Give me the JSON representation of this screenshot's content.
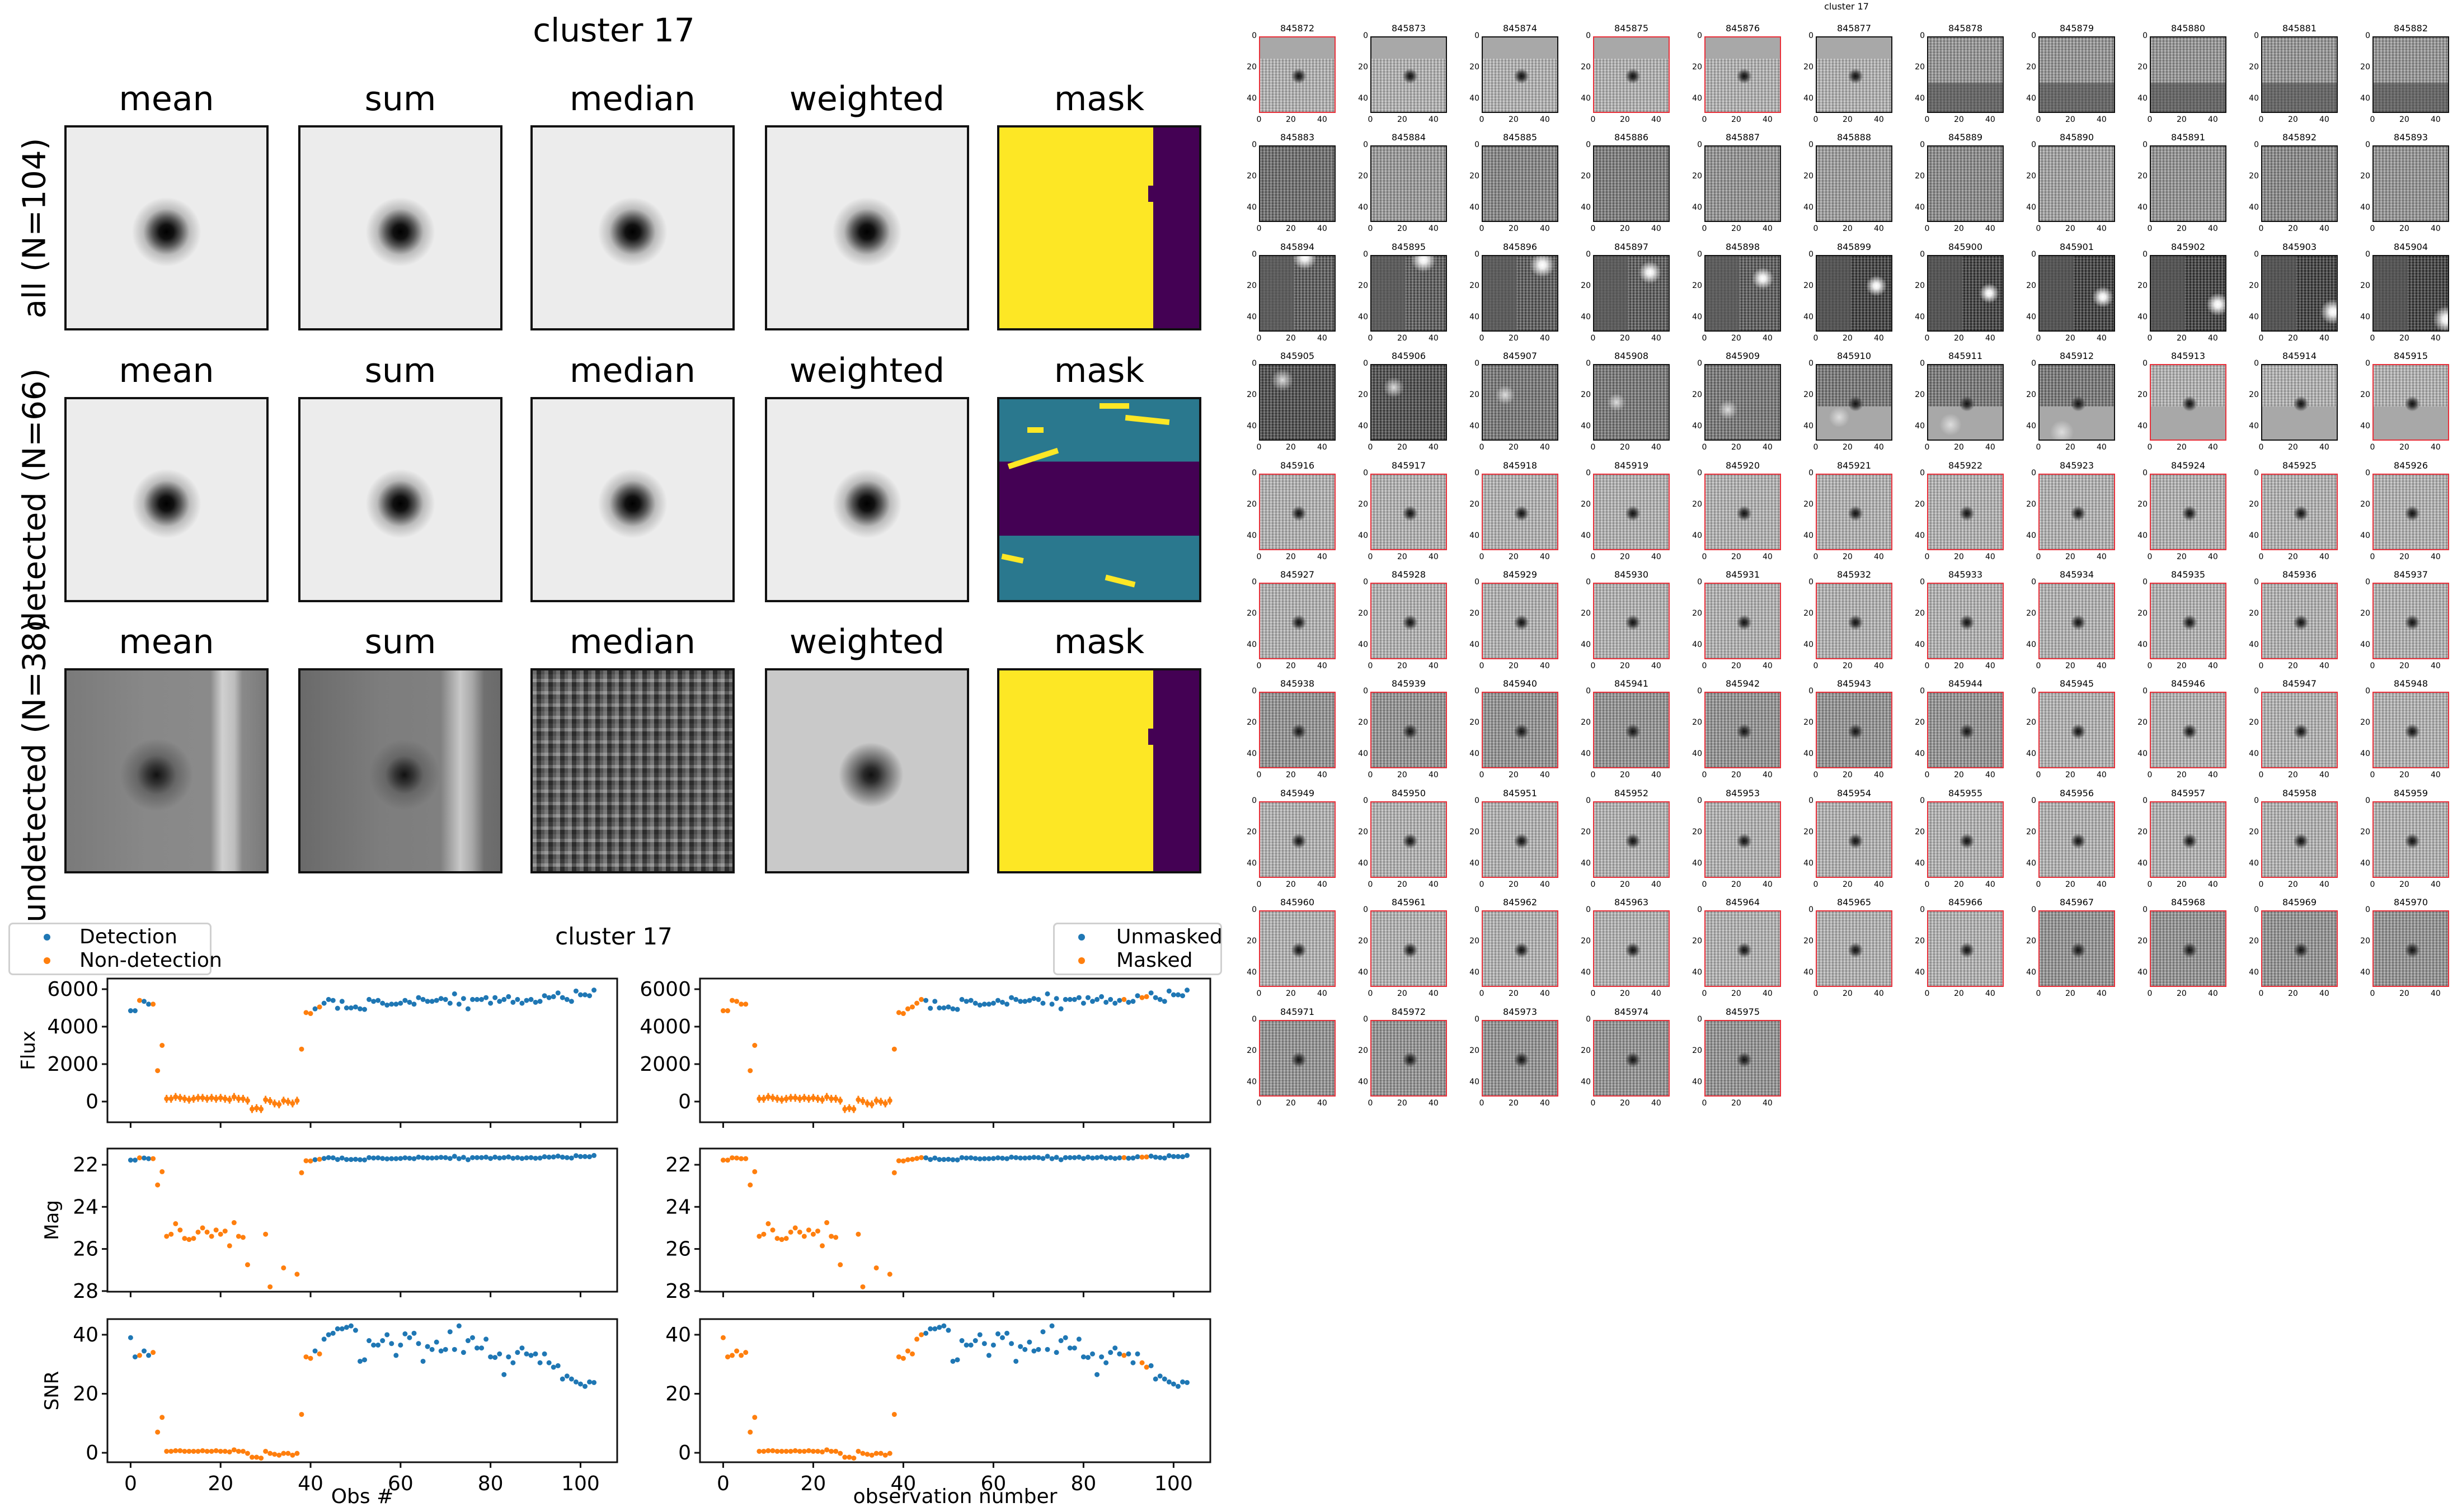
{
  "stacks": {
    "title": "cluster 17",
    "columns": [
      "mean",
      "sum",
      "median",
      "weighted",
      "mask"
    ],
    "rows": [
      {
        "label": "all (N=104)"
      },
      {
        "label": "detected (N=66)"
      },
      {
        "label": "undetected (N=38)"
      }
    ],
    "mask_colors": {
      "yellow": "#fde725",
      "teal": "#2a788e",
      "purple": "#440154"
    }
  },
  "chart_data": {
    "type": "scatter",
    "title": "cluster 17",
    "colors": {
      "blue": "#1f77b4",
      "orange": "#ff7f0e"
    },
    "x": [
      0,
      1,
      2,
      3,
      4,
      5,
      6,
      7,
      8,
      9,
      10,
      11,
      12,
      13,
      14,
      15,
      16,
      17,
      18,
      19,
      20,
      21,
      22,
      23,
      24,
      25,
      26,
      27,
      28,
      29,
      30,
      31,
      32,
      33,
      34,
      35,
      36,
      37,
      38,
      39,
      40,
      41,
      42,
      43,
      44,
      45,
      46,
      47,
      48,
      49,
      50,
      51,
      52,
      53,
      54,
      55,
      56,
      57,
      58,
      59,
      60,
      61,
      62,
      63,
      64,
      65,
      66,
      67,
      68,
      69,
      70,
      71,
      72,
      73,
      74,
      75,
      76,
      77,
      78,
      79,
      80,
      81,
      82,
      83,
      84,
      85,
      86,
      87,
      88,
      89,
      90,
      91,
      92,
      93,
      94,
      95,
      96,
      97,
      98,
      99,
      100,
      101,
      102,
      103
    ],
    "flux": [
      4850,
      4850,
      5400,
      5350,
      5200,
      5200,
      1650,
      3000,
      150,
      150,
      250,
      200,
      150,
      100,
      150,
      200,
      200,
      150,
      200,
      150,
      200,
      150,
      100,
      250,
      150,
      150,
      50,
      -400,
      -350,
      -400,
      100,
      30,
      -100,
      -150,
      50,
      -10,
      -100,
      50,
      2800,
      4750,
      4700,
      4950,
      5050,
      5250,
      5450,
      5400,
      4980,
      5350,
      5000,
      5000,
      5050,
      4950,
      4920,
      5450,
      5350,
      5400,
      5250,
      5150,
      5200,
      5200,
      5250,
      5400,
      5300,
      5200,
      5550,
      5450,
      5350,
      5350,
      5400,
      5500,
      5450,
      5250,
      5750,
      5200,
      5500,
      4950,
      5450,
      5450,
      5450,
      5550,
      5250,
      5550,
      5350,
      5450,
      5600,
      5300,
      5450,
      5250,
      5400,
      5450,
      5300,
      5350,
      5650,
      5550,
      5600,
      5800,
      5550,
      5450,
      5350,
      5900,
      5700,
      5700,
      5650,
      5950
    ],
    "flux_err_typical": 150,
    "mag": [
      21.78,
      21.78,
      21.67,
      21.68,
      21.71,
      21.71,
      22.96,
      22.33,
      25.4,
      25.3,
      24.8,
      25.1,
      25.5,
      25.55,
      25.5,
      25.2,
      25.0,
      25.2,
      25.4,
      25.1,
      25.3,
      25.15,
      25.85,
      24.75,
      25.4,
      25.45,
      26.75,
      null,
      null,
      null,
      25.3,
      27.8,
      null,
      null,
      26.9,
      null,
      null,
      27.2,
      22.38,
      21.81,
      21.82,
      21.76,
      21.74,
      21.7,
      21.66,
      21.67,
      21.75,
      21.68,
      21.75,
      21.75,
      21.74,
      21.76,
      21.77,
      21.66,
      21.68,
      21.67,
      21.7,
      21.72,
      21.71,
      21.71,
      21.7,
      21.67,
      21.69,
      21.71,
      21.64,
      21.66,
      21.68,
      21.68,
      21.67,
      21.65,
      21.66,
      21.7,
      21.6,
      21.71,
      21.65,
      21.76,
      21.66,
      21.66,
      21.66,
      21.64,
      21.7,
      21.64,
      21.68,
      21.66,
      21.63,
      21.69,
      21.66,
      21.7,
      21.67,
      21.66,
      21.69,
      21.68,
      21.62,
      21.64,
      21.63,
      21.59,
      21.64,
      21.66,
      21.68,
      21.57,
      21.61,
      21.61,
      21.62,
      21.56
    ],
    "snr": [
      39,
      32.5,
      33,
      34.5,
      33,
      34,
      7,
      12,
      0.5,
      0.5,
      0.7,
      0.7,
      0.5,
      0.5,
      0.5,
      0.5,
      0.7,
      0.5,
      0.5,
      0.7,
      0.5,
      0.5,
      0.3,
      1,
      0.5,
      0.5,
      -0.2,
      -1.5,
      -1.5,
      -1.8,
      0.5,
      -0.2,
      -0.5,
      -0.8,
      -0.2,
      -0.2,
      -0.8,
      -0.2,
      13,
      32.5,
      32,
      34.5,
      33.5,
      38.5,
      40,
      40.5,
      42,
      42,
      42.5,
      43,
      41.5,
      31,
      31.5,
      38,
      36.5,
      36.5,
      38,
      40,
      37,
      33,
      36.5,
      40.3,
      39,
      40.5,
      37,
      31,
      36,
      35,
      37.5,
      34.5,
      35,
      41,
      35,
      43,
      34,
      38,
      39,
      35.5,
      35.5,
      38.5,
      32.5,
      32.3,
      33.5,
      26.5,
      32.5,
      30.5,
      34,
      35.5,
      33.5,
      33,
      33.5,
      30.5,
      33.5,
      30.5,
      29,
      29.5,
      25,
      26,
      25,
      24,
      23.3,
      22.5,
      24,
      23.8
    ],
    "detected_indices_note_free": true,
    "non_detection_indices": [
      2,
      5,
      6,
      7,
      8,
      9,
      10,
      11,
      12,
      13,
      14,
      15,
      16,
      17,
      18,
      19,
      20,
      21,
      22,
      23,
      24,
      25,
      26,
      27,
      28,
      29,
      30,
      31,
      32,
      33,
      34,
      35,
      36,
      37,
      38,
      39,
      40,
      42
    ],
    "masked_indices": [
      0,
      1,
      2,
      3,
      4,
      5,
      6,
      7,
      8,
      9,
      10,
      11,
      12,
      13,
      14,
      15,
      16,
      17,
      18,
      19,
      20,
      21,
      22,
      23,
      24,
      25,
      26,
      27,
      28,
      29,
      30,
      31,
      32,
      33,
      34,
      35,
      36,
      37,
      38,
      39,
      40,
      41,
      42,
      43,
      44,
      89,
      93,
      94
    ],
    "xlim": [
      -5.15,
      108.15
    ],
    "xticks": [
      0,
      20,
      40,
      60,
      80,
      100
    ],
    "panels": [
      {
        "ylabel": "Flux",
        "ylim": [
          -1104,
          6567
        ],
        "yticks": [
          0,
          2000,
          4000,
          6000
        ],
        "field": "flux"
      },
      {
        "ylabel": "Mag",
        "ylim": [
          28.03,
          21.23
        ],
        "yticks": [
          22,
          24,
          26,
          28
        ],
        "field": "mag",
        "inverted": true
      },
      {
        "ylabel": "SNR",
        "ylim": [
          -3.2,
          45.3
        ],
        "yticks": [
          0,
          20,
          40
        ],
        "field": "snr"
      }
    ],
    "plots": [
      {
        "xlabel": "Obs #",
        "legend": [
          "Detection",
          "Non-detection"
        ],
        "legend_placement": "top-left",
        "split": "non_detection_indices",
        "show_ylabels": true
      },
      {
        "xlabel": "observation number",
        "legend": [
          "Unmasked",
          "Masked"
        ],
        "legend_placement": "top-right",
        "split": "masked_indices",
        "show_ylabels": false
      }
    ]
  },
  "thumbnails": {
    "title": "cluster 17",
    "ticks": [
      "0",
      "20",
      "40"
    ],
    "outline_color": "#e8303a",
    "outlined_indices": [
      0,
      3,
      4,
      41,
      43,
      44,
      45,
      46,
      47,
      48,
      49,
      50,
      51,
      52,
      53,
      54,
      55,
      56,
      57,
      58,
      59,
      60,
      61,
      62,
      63,
      64,
      65,
      66,
      67,
      68,
      69,
      70,
      71,
      72,
      73,
      74,
      75,
      76,
      77,
      78,
      79,
      80,
      81,
      82,
      83,
      84,
      85,
      86,
      87,
      88,
      89,
      90,
      91,
      92,
      93,
      94,
      95,
      96,
      97,
      98,
      99,
      100,
      101,
      102,
      103
    ],
    "ids": [
      "845872",
      "845873",
      "845874",
      "845875",
      "845876",
      "845877",
      "845878",
      "845879",
      "845880",
      "845881",
      "845882",
      "845883",
      "845884",
      "845885",
      "845886",
      "845887",
      "845888",
      "845889",
      "845890",
      "845891",
      "845892",
      "845893",
      "845894",
      "845895",
      "845896",
      "845897",
      "845898",
      "845899",
      "845900",
      "845901",
      "845902",
      "845903",
      "845904",
      "845905",
      "845906",
      "845907",
      "845908",
      "845909",
      "845910",
      "845911",
      "845912",
      "845913",
      "845914",
      "845915",
      "845916",
      "845917",
      "845918",
      "845919",
      "845920",
      "845921",
      "845922",
      "845923",
      "845924",
      "845925",
      "845926",
      "845927",
      "845928",
      "845929",
      "845930",
      "845931",
      "845932",
      "845933",
      "845934",
      "845935",
      "845936",
      "845937",
      "845938",
      "845939",
      "845940",
      "845941",
      "845942",
      "845943",
      "845944",
      "845945",
      "845946",
      "845947",
      "845948",
      "845949",
      "845950",
      "845951",
      "845952",
      "845953",
      "845954",
      "845955",
      "845956",
      "845957",
      "845958",
      "845959",
      "845960",
      "845961",
      "845962",
      "845963",
      "845964",
      "845965",
      "845966",
      "845967",
      "845968",
      "845969",
      "845970",
      "845971",
      "845972",
      "845973",
      "845974",
      "845975"
    ]
  }
}
